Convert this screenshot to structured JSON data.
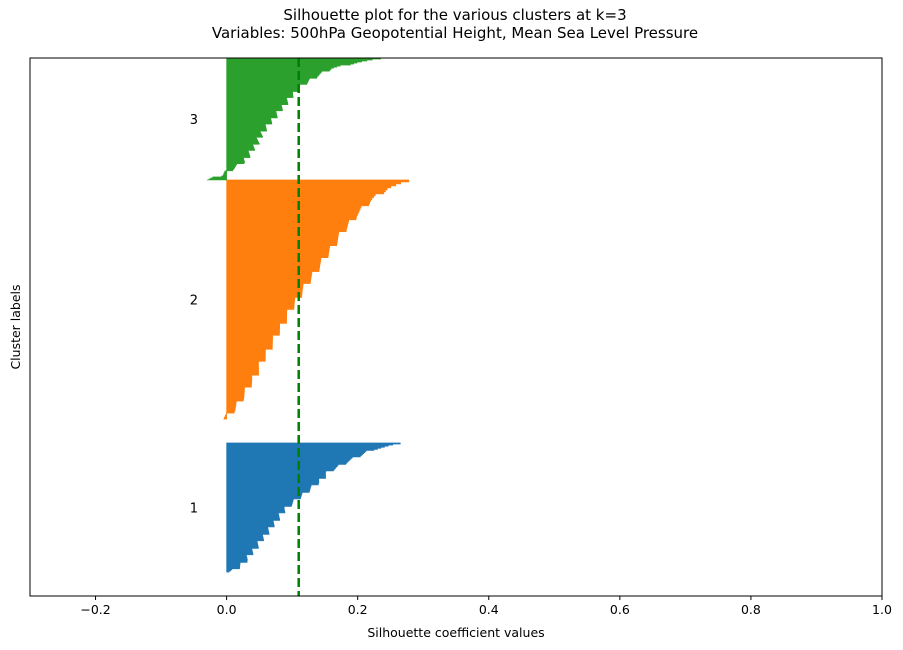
{
  "chart_data": {
    "type": "silhouette",
    "title_line1": "Silhouette plot for the various clusters at k=3",
    "title_line2": "Variables: 500hPa Geopotential Height, Mean Sea Level Pressure",
    "xlabel": "Silhouette coefficient values",
    "ylabel": "Cluster labels",
    "xlim": [
      -0.3,
      1.0
    ],
    "xticks": [
      -0.2,
      0.0,
      0.2,
      0.4,
      0.6,
      0.8,
      1.0
    ],
    "xtick_labels": [
      "−0.2",
      "0.0",
      "0.2",
      "0.4",
      "0.6",
      "0.8",
      "1.0"
    ],
    "ylim": [
      0,
      2250
    ],
    "average_silhouette": 0.11,
    "average_line_color": "#008000",
    "clusters": [
      {
        "label": "1",
        "color": "#1f77b4",
        "y_lower": 100,
        "size": 540,
        "profile": [
          [
            0.0,
            0.265
          ],
          [
            0.02,
            0.245
          ],
          [
            0.05,
            0.22
          ],
          [
            0.1,
            0.2
          ],
          [
            0.15,
            0.18
          ],
          [
            0.22,
            0.155
          ],
          [
            0.3,
            0.14
          ],
          [
            0.4,
            0.115
          ],
          [
            0.5,
            0.09
          ],
          [
            0.6,
            0.075
          ],
          [
            0.7,
            0.06
          ],
          [
            0.8,
            0.045
          ],
          [
            0.9,
            0.03
          ],
          [
            0.97,
            0.015
          ],
          [
            1.0,
            0.002
          ]
        ]
      },
      {
        "label": "2",
        "color": "#ff7f0e",
        "y_lower": 740,
        "size": 1000,
        "profile": [
          [
            0.0,
            0.278
          ],
          [
            0.03,
            0.245
          ],
          [
            0.08,
            0.22
          ],
          [
            0.15,
            0.195
          ],
          [
            0.22,
            0.175
          ],
          [
            0.3,
            0.155
          ],
          [
            0.38,
            0.135
          ],
          [
            0.46,
            0.115
          ],
          [
            0.55,
            0.095
          ],
          [
            0.65,
            0.075
          ],
          [
            0.75,
            0.055
          ],
          [
            0.83,
            0.04
          ],
          [
            0.9,
            0.025
          ],
          [
            0.96,
            0.01
          ],
          [
            1.0,
            -0.005
          ]
        ]
      },
      {
        "label": "3",
        "color": "#2ca02c",
        "y_lower": 1740,
        "size": 510,
        "profile": [
          [
            0.0,
            0.235
          ],
          [
            0.03,
            0.2
          ],
          [
            0.08,
            0.16
          ],
          [
            0.15,
            0.135
          ],
          [
            0.22,
            0.115
          ],
          [
            0.3,
            0.1
          ],
          [
            0.4,
            0.085
          ],
          [
            0.5,
            0.07
          ],
          [
            0.6,
            0.055
          ],
          [
            0.7,
            0.045
          ],
          [
            0.78,
            0.035
          ],
          [
            0.85,
            0.025
          ],
          [
            0.9,
            0.01
          ],
          [
            0.93,
            0.0
          ],
          [
            0.96,
            -0.008
          ],
          [
            1.0,
            -0.03
          ]
        ]
      }
    ]
  }
}
